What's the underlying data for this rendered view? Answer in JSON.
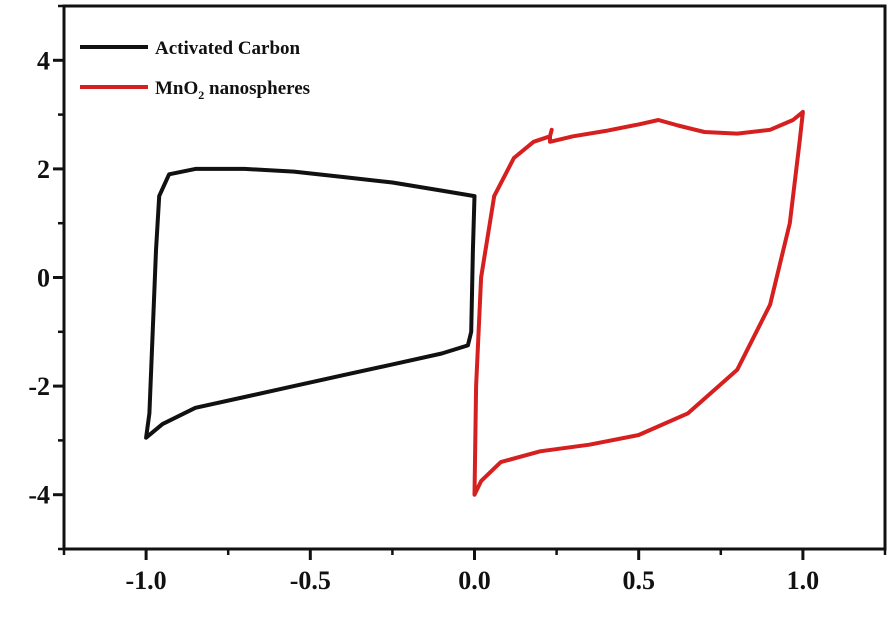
{
  "chart_data": {
    "type": "line",
    "title": "",
    "xlabel": "",
    "ylabel": "",
    "xlim": [
      -1.25,
      1.25
    ],
    "ylim": [
      -5,
      5
    ],
    "x_ticks": [
      -1.0,
      -0.5,
      0.0,
      0.5,
      1.0
    ],
    "x_tick_labels": [
      "-1.0",
      "-0.5",
      "0.0",
      "0.5",
      "1.0"
    ],
    "y_ticks": [
      -4,
      -2,
      0,
      2,
      4
    ],
    "y_tick_labels": [
      "-4",
      "-2",
      "0",
      "2",
      "4"
    ],
    "grid": false,
    "legend_position": "top-left",
    "series": [
      {
        "name": "Activated Carbon",
        "legend_label": "Activated Carbon",
        "color": "#111111",
        "points": [
          [
            0.0,
            1.5
          ],
          [
            -0.1,
            1.6
          ],
          [
            -0.25,
            1.75
          ],
          [
            -0.4,
            1.85
          ],
          [
            -0.55,
            1.95
          ],
          [
            -0.7,
            2.0
          ],
          [
            -0.85,
            2.0
          ],
          [
            -0.93,
            1.9
          ],
          [
            -0.96,
            1.5
          ],
          [
            -0.97,
            0.5
          ],
          [
            -0.98,
            -1.0
          ],
          [
            -0.99,
            -2.5
          ],
          [
            -1.0,
            -2.95
          ],
          [
            -0.95,
            -2.7
          ],
          [
            -0.85,
            -2.4
          ],
          [
            -0.7,
            -2.2
          ],
          [
            -0.55,
            -2.0
          ],
          [
            -0.4,
            -1.8
          ],
          [
            -0.25,
            -1.6
          ],
          [
            -0.1,
            -1.4
          ],
          [
            -0.02,
            -1.25
          ],
          [
            -0.01,
            -1.0
          ],
          [
            -0.005,
            0.5
          ],
          [
            0.0,
            1.5
          ]
        ]
      },
      {
        "name": "MnO2 nanospheres",
        "legend_label": "MnO",
        "legend_sub": "2",
        "legend_suffix": " nanospheres",
        "color": "#d61f1f",
        "points": [
          [
            0.23,
            2.6
          ],
          [
            0.23,
            2.5
          ],
          [
            0.3,
            2.6
          ],
          [
            0.4,
            2.7
          ],
          [
            0.5,
            2.82
          ],
          [
            0.56,
            2.9
          ],
          [
            0.62,
            2.8
          ],
          [
            0.7,
            2.68
          ],
          [
            0.8,
            2.65
          ],
          [
            0.9,
            2.72
          ],
          [
            0.97,
            2.9
          ],
          [
            1.0,
            3.05
          ],
          [
            0.99,
            2.5
          ],
          [
            0.96,
            1.0
          ],
          [
            0.9,
            -0.5
          ],
          [
            0.8,
            -1.7
          ],
          [
            0.65,
            -2.5
          ],
          [
            0.5,
            -2.9
          ],
          [
            0.35,
            -3.08
          ],
          [
            0.2,
            -3.2
          ],
          [
            0.08,
            -3.4
          ],
          [
            0.02,
            -3.75
          ],
          [
            0.0,
            -4.0
          ],
          [
            0.005,
            -2.0
          ],
          [
            0.02,
            0.0
          ],
          [
            0.06,
            1.5
          ],
          [
            0.12,
            2.2
          ],
          [
            0.18,
            2.5
          ],
          [
            0.23,
            2.6
          ],
          [
            0.235,
            2.72
          ]
        ]
      }
    ]
  }
}
